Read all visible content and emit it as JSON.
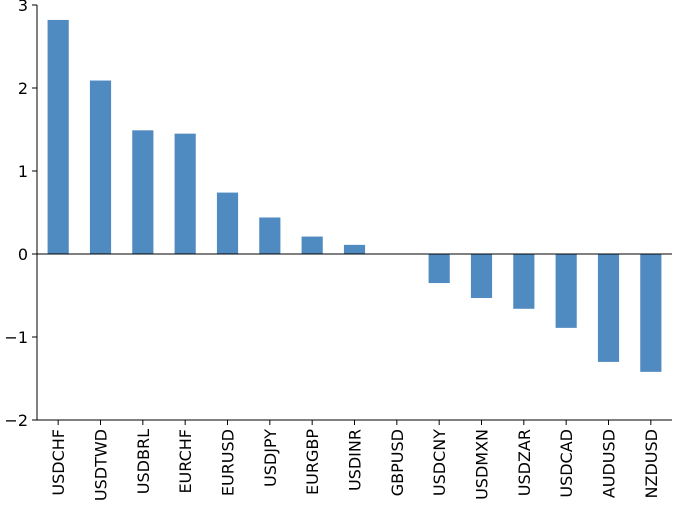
{
  "chart_data": {
    "type": "bar",
    "title": "",
    "xlabel": "",
    "ylabel": "",
    "categories": [
      "USDCHF",
      "USDTWD",
      "USDBRL",
      "EURCHF",
      "EURUSD",
      "USDJPY",
      "EURGBP",
      "USDINR",
      "GBPUSD",
      "USDCNY",
      "USDMXN",
      "USDZAR",
      "USDCAD",
      "AUDUSD",
      "NZDUSD"
    ],
    "values": [
      2.82,
      2.09,
      1.49,
      1.45,
      0.74,
      0.44,
      0.21,
      0.11,
      0.0,
      -0.35,
      -0.53,
      -0.66,
      -0.89,
      -1.3,
      -1.42
    ],
    "ylim": [
      -2,
      3
    ],
    "yticks": [
      "−2",
      "−1",
      "0",
      "1",
      "2",
      "3"
    ],
    "ytick_values": [
      -2,
      -1,
      0,
      1,
      2,
      3
    ],
    "bar_color": "#4f8bc1",
    "grid": false,
    "legend": false
  }
}
